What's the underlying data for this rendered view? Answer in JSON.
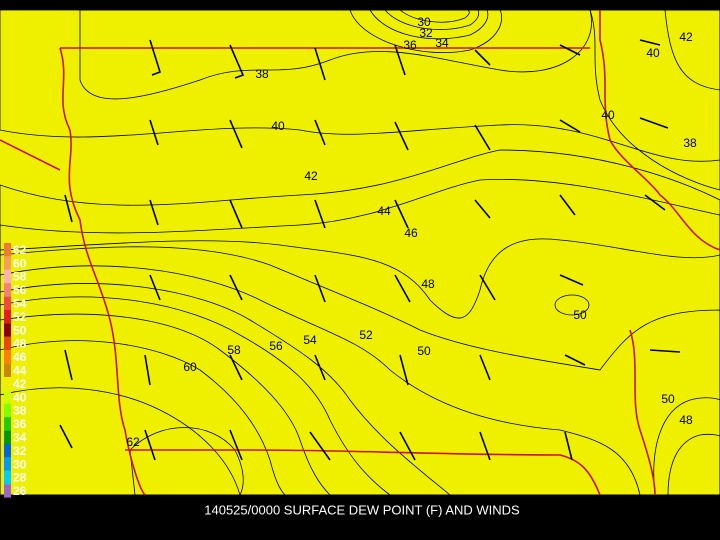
{
  "title": "140525/0000 SURFACE DEW POINT (F) AND WINDS",
  "legend": [
    {
      "label": "62",
      "color": "#ee7a3a"
    },
    {
      "label": "60",
      "color": "#f5a05a"
    },
    {
      "label": "58",
      "color": "#ffb0b8"
    },
    {
      "label": "56",
      "color": "#f58080"
    },
    {
      "label": "54",
      "color": "#f04848"
    },
    {
      "label": "52",
      "color": "#e01c1c"
    },
    {
      "label": "50",
      "color": "#8b0000"
    },
    {
      "label": "48",
      "color": "#e84800"
    },
    {
      "label": "46",
      "color": "#ff7f00"
    },
    {
      "label": "44",
      "color": "#c8860b"
    },
    {
      "label": "42",
      "color": "#eef000"
    },
    {
      "label": "40",
      "color": "#ccff00"
    },
    {
      "label": "38",
      "color": "#7fff00"
    },
    {
      "label": "36",
      "color": "#22cc00"
    },
    {
      "label": "34",
      "color": "#009900"
    },
    {
      "label": "32",
      "color": "#0066dd"
    },
    {
      "label": "30",
      "color": "#0099ff"
    },
    {
      "label": "28",
      "color": "#00ccff"
    },
    {
      "label": "26",
      "color": "#9966cc"
    }
  ],
  "contour_labels": [
    "30",
    "32",
    "36",
    "34",
    "38",
    "40",
    "42",
    "44",
    "46",
    "48",
    "52",
    "50",
    "54",
    "56",
    "58",
    "60",
    "62",
    "40",
    "42",
    "40",
    "38",
    "50",
    "50",
    "48"
  ]
}
